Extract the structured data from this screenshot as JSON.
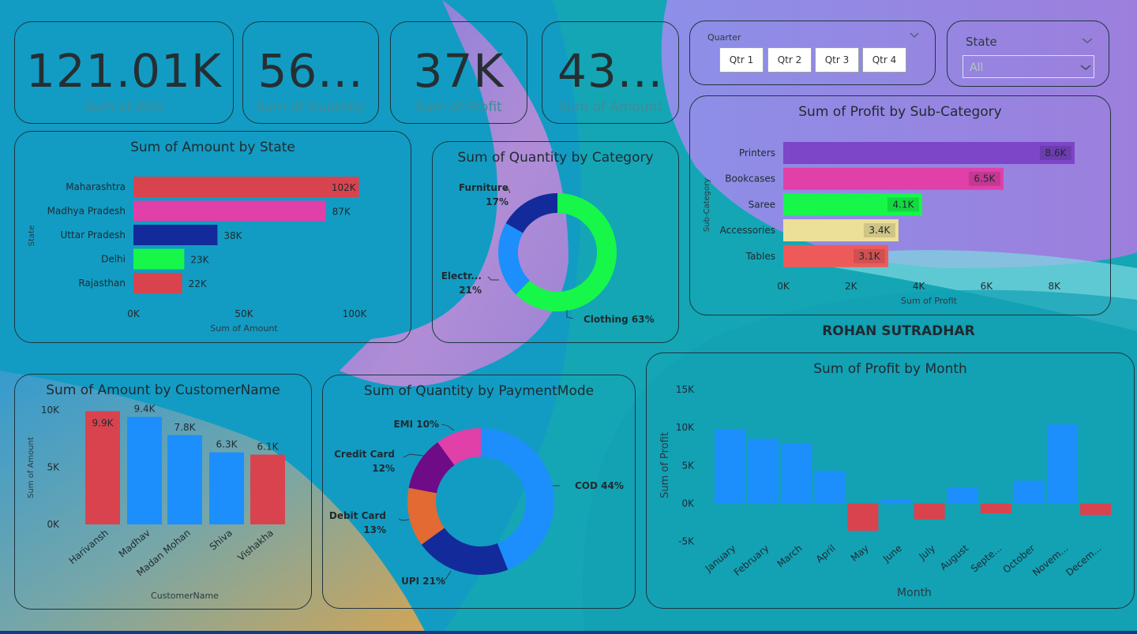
{
  "kpis": [
    {
      "value": "121.01K",
      "label": "Sum of AOV"
    },
    {
      "value": "56...",
      "label": "Sum of Quantity"
    },
    {
      "value": "37K",
      "label": "Sum of Profit"
    },
    {
      "value": "43...",
      "label": "Sum of Amount"
    }
  ],
  "quarter_slicer": {
    "title": "Quarter",
    "options": [
      "Qtr 1",
      "Qtr 2",
      "Qtr 3",
      "Qtr 4"
    ]
  },
  "state_slicer": {
    "title": "State",
    "selected": "All"
  },
  "author": "ROHAN SUTRADHAR",
  "colors": {
    "red": "#d9434e",
    "pink": "#e040a8",
    "navy": "#132b9a",
    "green": "#16f74a",
    "blue": "#1c8ffd",
    "purple": "#7d45c8",
    "cream": "#ece098",
    "coral": "#ee5a5a",
    "orange": "#e36a32",
    "violet": "#6f0b86"
  },
  "chart_data": [
    {
      "id": "amount_by_state",
      "type": "bar",
      "orientation": "horizontal",
      "title": "Sum of Amount by State",
      "xlabel": "Sum of Amount",
      "ylabel": "State",
      "categories": [
        "Maharashtra",
        "Madhya Pradesh",
        "Uttar Pradesh",
        "Delhi",
        "Rajasthan"
      ],
      "values": [
        102000,
        87000,
        38000,
        23000,
        22000
      ],
      "value_labels": [
        "102K",
        "87K",
        "38K",
        "23K",
        "22K"
      ],
      "bar_colors": [
        "#d9434e",
        "#e040a8",
        "#132b9a",
        "#16f74a",
        "#d9434e"
      ],
      "xlim": [
        0,
        100000
      ],
      "ticks": [
        0,
        50000,
        100000
      ],
      "tick_labels": [
        "0K",
        "50K",
        "100K"
      ]
    },
    {
      "id": "quantity_by_category",
      "type": "pie",
      "donut": true,
      "title": "Sum of Quantity by Category",
      "slices": [
        {
          "name": "Clothing",
          "value": 63,
          "label": "Clothing 63%",
          "color": "#16f74a"
        },
        {
          "name": "Electr...",
          "value": 21,
          "label": "21%",
          "color": "#1c8ffd"
        },
        {
          "name": "Furniture",
          "value": 17,
          "label": "17%",
          "color": "#132b9a"
        }
      ]
    },
    {
      "id": "profit_by_subcategory",
      "type": "bar",
      "orientation": "horizontal",
      "title": "Sum of Profit by Sub-Category",
      "xlabel": "Sum of Profit",
      "ylabel": "Sub-Category",
      "categories": [
        "Printers",
        "Bookcases",
        "Saree",
        "Accessories",
        "Tables"
      ],
      "values": [
        8600,
        6500,
        4100,
        3400,
        3100
      ],
      "value_labels": [
        "8.6K",
        "6.5K",
        "4.1K",
        "3.4K",
        "3.1K"
      ],
      "bar_colors": [
        "#7d45c8",
        "#e040a8",
        "#16f74a",
        "#ece098",
        "#ee5a5a"
      ],
      "xlim": [
        0,
        8600
      ],
      "ticks": [
        0,
        2000,
        4000,
        6000,
        8000
      ],
      "tick_labels": [
        "0K",
        "2K",
        "4K",
        "6K",
        "8K"
      ]
    },
    {
      "id": "amount_by_customer",
      "type": "bar",
      "orientation": "vertical",
      "title": "Sum of Amount by CustomerName",
      "xlabel": "CustomerName",
      "ylabel": "Sum of Amount",
      "categories": [
        "Harivansh",
        "Madhav",
        "Madan Mohan",
        "Shiva",
        "Vishakha"
      ],
      "values": [
        9900,
        9400,
        7800,
        6300,
        6100
      ],
      "value_labels": [
        "9.9K",
        "9.4K",
        "7.8K",
        "6.3K",
        "6.1K"
      ],
      "bar_colors": [
        "#d9434e",
        "#1c8ffd",
        "#1c8ffd",
        "#1c8ffd",
        "#d9434e"
      ],
      "ylim": [
        0,
        10000
      ],
      "ticks": [
        0,
        5000,
        10000
      ],
      "tick_labels": [
        "0K",
        "5K",
        "10K"
      ]
    },
    {
      "id": "quantity_by_paymentmode",
      "type": "pie",
      "donut": true,
      "title": "Sum of Quantity by PaymentMode",
      "slices": [
        {
          "name": "COD",
          "value": 44,
          "label": "COD 44%",
          "color": "#1c8ffd"
        },
        {
          "name": "UPI",
          "value": 21,
          "label": "UPI 21%",
          "color": "#132b9a"
        },
        {
          "name": "Debit Card",
          "value": 13,
          "label": "13%",
          "color": "#e36a32"
        },
        {
          "name": "Credit Card",
          "value": 12,
          "label": "12%",
          "color": "#6f0b86"
        },
        {
          "name": "EMI",
          "value": 10,
          "label": "EMI 10%",
          "color": "#e040a8"
        }
      ]
    },
    {
      "id": "profit_by_month",
      "type": "bar",
      "orientation": "vertical",
      "title": "Sum of Profit by Month",
      "xlabel": "Month",
      "ylabel": "Sum of Profit",
      "categories": [
        "January",
        "February",
        "March",
        "April",
        "May",
        "June",
        "July",
        "August",
        "Septe...",
        "October",
        "Novem...",
        "Decem..."
      ],
      "values": [
        9800,
        8500,
        7900,
        4300,
        -3600,
        500,
        -2100,
        2100,
        -1300,
        3000,
        10400,
        -1500
      ],
      "ylim": [
        -5000,
        15000
      ],
      "ticks": [
        -5000,
        0,
        5000,
        10000,
        15000
      ],
      "tick_labels": [
        "-5K",
        "0K",
        "5K",
        "10K",
        "15K"
      ],
      "positive_color": "#1c8ffd",
      "negative_color": "#d9434e"
    }
  ]
}
